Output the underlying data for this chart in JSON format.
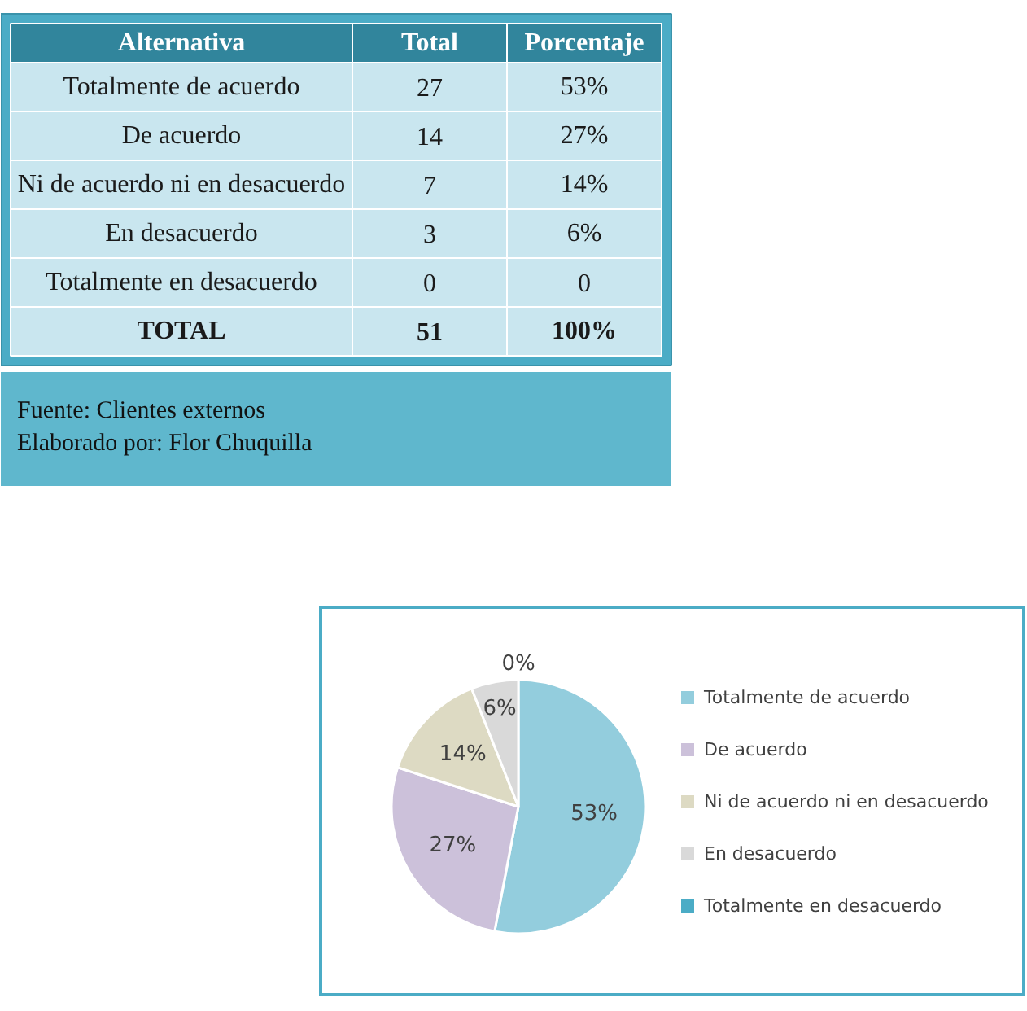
{
  "chart_data": [
    {
      "type": "other",
      "xlabel": "Alternativa",
      "categories": [
        "Totalmente de acuerdo",
        "De acuerdo",
        "Ni de acuerdo ni en desacuerdo",
        "En desacuerdo",
        "Totalmente en desacuerdo"
      ],
      "series": [
        {
          "name": "Total",
          "values": [
            27,
            14,
            7,
            3,
            0
          ]
        },
        {
          "name": "Porcentaje",
          "values": [
            53,
            27,
            14,
            6,
            0
          ],
          "value_labels": [
            "53%",
            "27%",
            "14%",
            "6%",
            "0"
          ]
        }
      ],
      "data_labels": true,
      "totals": [
        "51",
        "100%"
      ],
      "annotations": [
        "TOTAL",
        "Fuente: Clientes externos",
        "Elaborado por: Flor Chuquilla"
      ]
    },
    {
      "type": "pie",
      "categories": [
        "Totalmente de acuerdo",
        "De acuerdo",
        "Ni de acuerdo ni en desacuerdo",
        "En desacuerdo",
        "Totalmente en desacuerdo"
      ],
      "values": [
        53,
        27,
        14,
        6,
        0
      ],
      "colors": [
        "#93cddd",
        "#ccc1da",
        "#dddac3",
        "#d9d9d9",
        "#4bacc6"
      ],
      "value_labels": [
        "53%",
        "27%",
        "14%",
        "6%",
        "0%"
      ],
      "legend": "right"
    }
  ]
}
